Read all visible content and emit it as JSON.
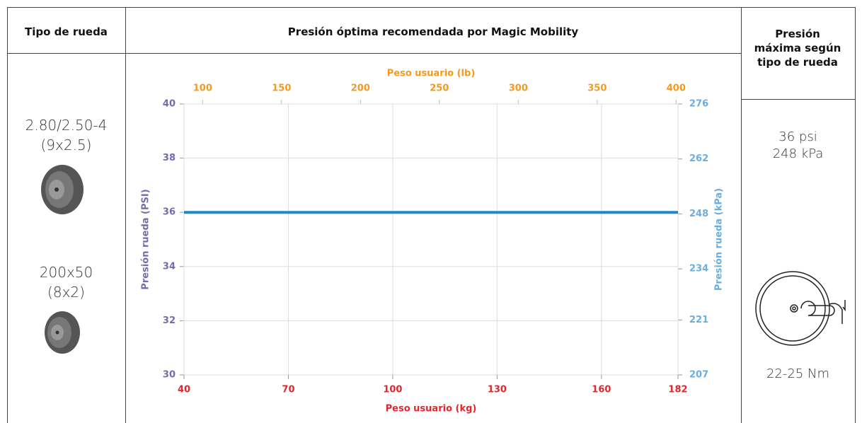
{
  "header": {
    "wheel_type": "Tipo de rueda",
    "recommended": "Presión óptima recomendada por Magic Mobility",
    "max": "Presión máxima según tipo de rueda"
  },
  "wheels": [
    {
      "size": "2.80/2.50-4",
      "alt": "(9x2.5)"
    },
    {
      "size": "200x50",
      "alt": "(8x2)"
    }
  ],
  "max_pressure": {
    "psi": "36 psi",
    "kpa": "248 kPa"
  },
  "torque": "22-25 Nm",
  "chart_data": {
    "type": "line",
    "x_label": "Peso usuario (kg)",
    "x2_label": "Peso usuario (lb)",
    "y_label": "Presión rueda (PSI)",
    "y2_label": "Presión rueda (kPa)",
    "xlim": [
      40,
      182
    ],
    "xticks": [
      40,
      70,
      100,
      130,
      160,
      182
    ],
    "x2lim": [
      88.2,
      401.2
    ],
    "x2ticks": [
      100,
      150,
      200,
      250,
      300,
      350,
      400
    ],
    "ylim": [
      30,
      40
    ],
    "yticks": [
      30,
      32,
      34,
      36,
      38,
      40
    ],
    "y2lim": [
      207,
      276
    ],
    "y2ticks": [
      207,
      221,
      234,
      248,
      262,
      276
    ],
    "grid": true,
    "colors": {
      "x": "#e3262d",
      "x2": "#f39a1e",
      "y": "#7a68ad",
      "y2": "#6aaee0"
    },
    "x": [
      40,
      182
    ],
    "series": [
      {
        "color": "#1b8ac9",
        "values": [
          36,
          36
        ]
      }
    ]
  }
}
